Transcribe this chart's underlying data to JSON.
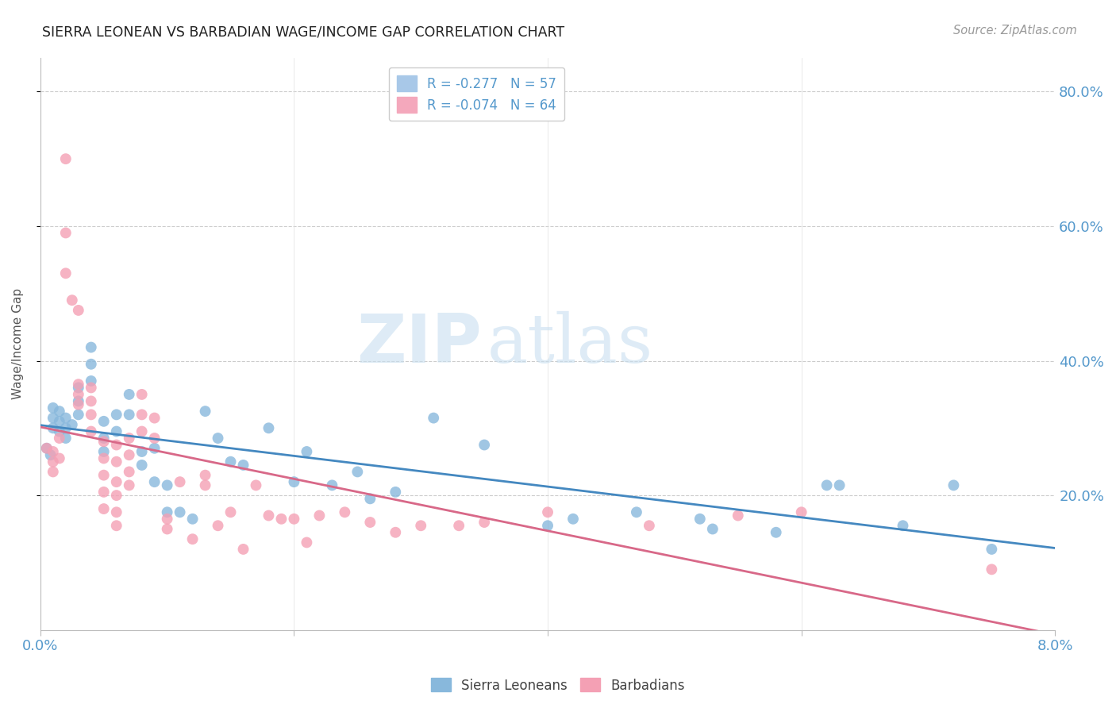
{
  "title": "SIERRA LEONEAN VS BARBADIAN WAGE/INCOME GAP CORRELATION CHART",
  "source": "Source: ZipAtlas.com",
  "ylabel": "Wage/Income Gap",
  "xlim": [
    0.0,
    0.08
  ],
  "ylim": [
    0.0,
    0.85
  ],
  "xticks": [
    0.0,
    0.02,
    0.04,
    0.06,
    0.08
  ],
  "xtick_labels": [
    "0.0%",
    "",
    "",
    "",
    "8.0%"
  ],
  "ytick_labels": [
    "20.0%",
    "40.0%",
    "60.0%",
    "80.0%"
  ],
  "ytick_positions": [
    0.2,
    0.4,
    0.6,
    0.8
  ],
  "legend_entries": [
    {
      "label": "R = -0.277   N = 57",
      "color": "#a8c8e8"
    },
    {
      "label": "R = -0.074   N = 64",
      "color": "#f4a8bc"
    }
  ],
  "blue_color": "#88b8dc",
  "pink_color": "#f4a0b4",
  "trend_blue": "#4488c0",
  "trend_pink": "#d86888",
  "tick_color": "#5599cc",
  "watermark_zip": "ZIP",
  "watermark_atlas": "atlas",
  "sierra_points": [
    [
      0.0005,
      0.27
    ],
    [
      0.0008,
      0.26
    ],
    [
      0.001,
      0.33
    ],
    [
      0.001,
      0.315
    ],
    [
      0.001,
      0.3
    ],
    [
      0.0015,
      0.325
    ],
    [
      0.0015,
      0.31
    ],
    [
      0.0015,
      0.295
    ],
    [
      0.002,
      0.315
    ],
    [
      0.002,
      0.3
    ],
    [
      0.002,
      0.285
    ],
    [
      0.0025,
      0.305
    ],
    [
      0.003,
      0.36
    ],
    [
      0.003,
      0.34
    ],
    [
      0.003,
      0.32
    ],
    [
      0.004,
      0.42
    ],
    [
      0.004,
      0.395
    ],
    [
      0.004,
      0.37
    ],
    [
      0.005,
      0.31
    ],
    [
      0.005,
      0.285
    ],
    [
      0.005,
      0.265
    ],
    [
      0.006,
      0.32
    ],
    [
      0.006,
      0.295
    ],
    [
      0.007,
      0.35
    ],
    [
      0.007,
      0.32
    ],
    [
      0.008,
      0.265
    ],
    [
      0.008,
      0.245
    ],
    [
      0.009,
      0.22
    ],
    [
      0.009,
      0.27
    ],
    [
      0.01,
      0.215
    ],
    [
      0.01,
      0.175
    ],
    [
      0.011,
      0.175
    ],
    [
      0.012,
      0.165
    ],
    [
      0.013,
      0.325
    ],
    [
      0.014,
      0.285
    ],
    [
      0.015,
      0.25
    ],
    [
      0.016,
      0.245
    ],
    [
      0.018,
      0.3
    ],
    [
      0.02,
      0.22
    ],
    [
      0.021,
      0.265
    ],
    [
      0.023,
      0.215
    ],
    [
      0.025,
      0.235
    ],
    [
      0.026,
      0.195
    ],
    [
      0.028,
      0.205
    ],
    [
      0.031,
      0.315
    ],
    [
      0.035,
      0.275
    ],
    [
      0.04,
      0.155
    ],
    [
      0.042,
      0.165
    ],
    [
      0.047,
      0.175
    ],
    [
      0.052,
      0.165
    ],
    [
      0.053,
      0.15
    ],
    [
      0.058,
      0.145
    ],
    [
      0.062,
      0.215
    ],
    [
      0.063,
      0.215
    ],
    [
      0.068,
      0.155
    ],
    [
      0.072,
      0.215
    ],
    [
      0.075,
      0.12
    ]
  ],
  "barbadian_points": [
    [
      0.0005,
      0.27
    ],
    [
      0.001,
      0.265
    ],
    [
      0.001,
      0.25
    ],
    [
      0.001,
      0.235
    ],
    [
      0.0015,
      0.285
    ],
    [
      0.0015,
      0.255
    ],
    [
      0.002,
      0.7
    ],
    [
      0.002,
      0.59
    ],
    [
      0.002,
      0.53
    ],
    [
      0.0025,
      0.49
    ],
    [
      0.003,
      0.475
    ],
    [
      0.003,
      0.365
    ],
    [
      0.003,
      0.35
    ],
    [
      0.003,
      0.335
    ],
    [
      0.004,
      0.36
    ],
    [
      0.004,
      0.34
    ],
    [
      0.004,
      0.32
    ],
    [
      0.004,
      0.295
    ],
    [
      0.005,
      0.28
    ],
    [
      0.005,
      0.255
    ],
    [
      0.005,
      0.23
    ],
    [
      0.005,
      0.205
    ],
    [
      0.005,
      0.18
    ],
    [
      0.006,
      0.275
    ],
    [
      0.006,
      0.25
    ],
    [
      0.006,
      0.22
    ],
    [
      0.006,
      0.2
    ],
    [
      0.006,
      0.175
    ],
    [
      0.006,
      0.155
    ],
    [
      0.007,
      0.285
    ],
    [
      0.007,
      0.26
    ],
    [
      0.007,
      0.235
    ],
    [
      0.007,
      0.215
    ],
    [
      0.008,
      0.35
    ],
    [
      0.008,
      0.32
    ],
    [
      0.008,
      0.295
    ],
    [
      0.009,
      0.315
    ],
    [
      0.009,
      0.285
    ],
    [
      0.01,
      0.165
    ],
    [
      0.01,
      0.15
    ],
    [
      0.011,
      0.22
    ],
    [
      0.012,
      0.135
    ],
    [
      0.013,
      0.23
    ],
    [
      0.013,
      0.215
    ],
    [
      0.014,
      0.155
    ],
    [
      0.015,
      0.175
    ],
    [
      0.016,
      0.12
    ],
    [
      0.017,
      0.215
    ],
    [
      0.018,
      0.17
    ],
    [
      0.019,
      0.165
    ],
    [
      0.02,
      0.165
    ],
    [
      0.021,
      0.13
    ],
    [
      0.022,
      0.17
    ],
    [
      0.024,
      0.175
    ],
    [
      0.026,
      0.16
    ],
    [
      0.028,
      0.145
    ],
    [
      0.03,
      0.155
    ],
    [
      0.033,
      0.155
    ],
    [
      0.035,
      0.16
    ],
    [
      0.04,
      0.175
    ],
    [
      0.048,
      0.155
    ],
    [
      0.055,
      0.17
    ],
    [
      0.06,
      0.175
    ],
    [
      0.075,
      0.09
    ]
  ]
}
